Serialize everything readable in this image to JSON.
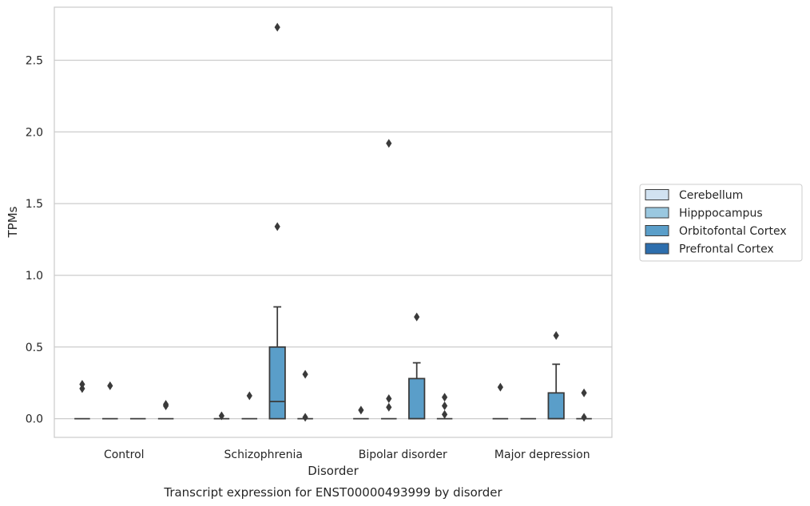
{
  "chart_data": {
    "type": "box",
    "title": "Transcript expression for ENST00000493999 by disorder",
    "xlabel": "Disorder",
    "ylabel": "TPMs",
    "categories": [
      "Control",
      "Schizophrenia",
      "Bipolar disorder",
      "Major depression"
    ],
    "ylim": [
      -0.13,
      2.87
    ],
    "yticks": [
      0.0,
      0.5,
      1.0,
      1.5,
      2.0,
      2.5
    ],
    "ytick_labels": [
      "0.0",
      "0.5",
      "1.0",
      "1.5",
      "2.0",
      "2.5"
    ],
    "grid": "horizontal",
    "legend_position": "right",
    "series": [
      {
        "name": "Cerebellum",
        "color": "#d1e2f1",
        "boxes": [
          {
            "category": "Control",
            "q1": 0.0,
            "median": 0.0,
            "q3": 0.0,
            "whisker_low": 0.0,
            "whisker_high": 0.0,
            "outliers": [
              0.21,
              0.24
            ]
          },
          {
            "category": "Schizophrenia",
            "q1": 0.0,
            "median": 0.0,
            "q3": 0.0,
            "whisker_low": 0.0,
            "whisker_high": 0.0,
            "outliers": [
              0.02
            ]
          },
          {
            "category": "Bipolar disorder",
            "q1": 0.0,
            "median": 0.0,
            "q3": 0.0,
            "whisker_low": 0.0,
            "whisker_high": 0.0,
            "outliers": [
              0.06
            ]
          },
          {
            "category": "Major depression",
            "q1": 0.0,
            "median": 0.0,
            "q3": 0.0,
            "whisker_low": 0.0,
            "whisker_high": 0.0,
            "outliers": [
              0.22
            ]
          }
        ]
      },
      {
        "name": "Hipppocampus",
        "color": "#9ac8e0",
        "boxes": [
          {
            "category": "Control",
            "q1": 0.0,
            "median": 0.0,
            "q3": 0.0,
            "whisker_low": 0.0,
            "whisker_high": 0.0,
            "outliers": [
              0.23
            ]
          },
          {
            "category": "Schizophrenia",
            "q1": 0.0,
            "median": 0.0,
            "q3": 0.0,
            "whisker_low": 0.0,
            "whisker_high": 0.0,
            "outliers": [
              0.16
            ]
          },
          {
            "category": "Bipolar disorder",
            "q1": 0.0,
            "median": 0.0,
            "q3": 0.0,
            "whisker_low": 0.0,
            "whisker_high": 0.0,
            "outliers": [
              0.08,
              0.14,
              1.92
            ]
          },
          {
            "category": "Major depression",
            "q1": 0.0,
            "median": 0.0,
            "q3": 0.0,
            "whisker_low": 0.0,
            "whisker_high": 0.0,
            "outliers": []
          }
        ]
      },
      {
        "name": "Orbitofontal Cortex",
        "color": "#5a9ec9",
        "boxes": [
          {
            "category": "Control",
            "q1": 0.0,
            "median": 0.0,
            "q3": 0.0,
            "whisker_low": 0.0,
            "whisker_high": 0.0,
            "outliers": []
          },
          {
            "category": "Schizophrenia",
            "q1": 0.0,
            "median": 0.12,
            "q3": 0.5,
            "whisker_low": 0.0,
            "whisker_high": 0.78,
            "outliers": [
              1.34,
              2.73
            ]
          },
          {
            "category": "Bipolar disorder",
            "q1": 0.0,
            "median": 0.0,
            "q3": 0.28,
            "whisker_low": 0.0,
            "whisker_high": 0.39,
            "outliers": [
              0.71
            ]
          },
          {
            "category": "Major depression",
            "q1": 0.0,
            "median": 0.0,
            "q3": 0.18,
            "whisker_low": 0.0,
            "whisker_high": 0.38,
            "outliers": [
              0.58
            ]
          }
        ]
      },
      {
        "name": "Prefrontal Cortex",
        "color": "#2d6ead",
        "boxes": [
          {
            "category": "Control",
            "q1": 0.0,
            "median": 0.0,
            "q3": 0.0,
            "whisker_low": 0.0,
            "whisker_high": 0.0,
            "outliers": [
              0.09,
              0.1
            ]
          },
          {
            "category": "Schizophrenia",
            "q1": 0.0,
            "median": 0.0,
            "q3": 0.0,
            "whisker_low": 0.0,
            "whisker_high": 0.0,
            "outliers": [
              0.01,
              0.31
            ]
          },
          {
            "category": "Bipolar disorder",
            "q1": 0.0,
            "median": 0.0,
            "q3": 0.0,
            "whisker_low": 0.0,
            "whisker_high": 0.0,
            "outliers": [
              0.03,
              0.09,
              0.15
            ]
          },
          {
            "category": "Major depression",
            "q1": 0.0,
            "median": 0.0,
            "q3": 0.0,
            "whisker_low": 0.0,
            "whisker_high": 0.0,
            "outliers": [
              0.01,
              0.18
            ]
          }
        ]
      }
    ]
  }
}
